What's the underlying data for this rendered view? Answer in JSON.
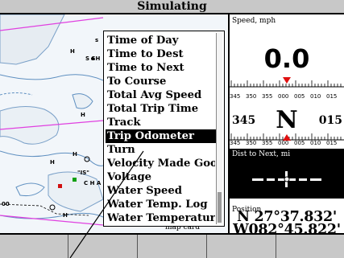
{
  "title": "Simulating",
  "map": {
    "depth_labels": [
      "s",
      "S SH",
      "H",
      "H",
      "H",
      "H",
      "\"IS\"",
      "C H A",
      "H",
      "00"
    ],
    "map_card_text": "map card"
  },
  "menu": {
    "items": [
      {
        "label": "Time of Day",
        "selected": false
      },
      {
        "label": "Time to Dest",
        "selected": false
      },
      {
        "label": "Time to Next",
        "selected": false
      },
      {
        "label": "To Course",
        "selected": false
      },
      {
        "label": "Total Avg Speed",
        "selected": false
      },
      {
        "label": "Total Trip Time",
        "selected": false
      },
      {
        "label": "Track",
        "selected": false
      },
      {
        "label": "Trip Odometer",
        "selected": true
      },
      {
        "label": "Turn",
        "selected": false
      },
      {
        "label": "Velocity Made Good",
        "selected": false
      },
      {
        "label": "Voltage",
        "selected": false
      },
      {
        "label": "Water Speed",
        "selected": false
      },
      {
        "label": "Water Temp. Log",
        "selected": false
      },
      {
        "label": "Water Temperature",
        "selected": false
      }
    ]
  },
  "panels": {
    "speed_label": "Speed, mph",
    "speed_value": "0.0",
    "tape_ticks": [
      "345",
      "350",
      "355",
      "000",
      "005",
      "010",
      "015"
    ],
    "heading_left": "345",
    "heading_letter": "N",
    "heading_right": "015",
    "dist_label": "Dist to Next, mi",
    "position_label": "Position",
    "lat": "N   27°37.832'",
    "lon": "W082°45.822'"
  },
  "colors": {
    "titlebar": "#c8c8c8",
    "selected_bg": "#000000",
    "map_water": "#f2f6fa",
    "route_line": "#e040e0",
    "compass_pointer": "#e01010"
  }
}
